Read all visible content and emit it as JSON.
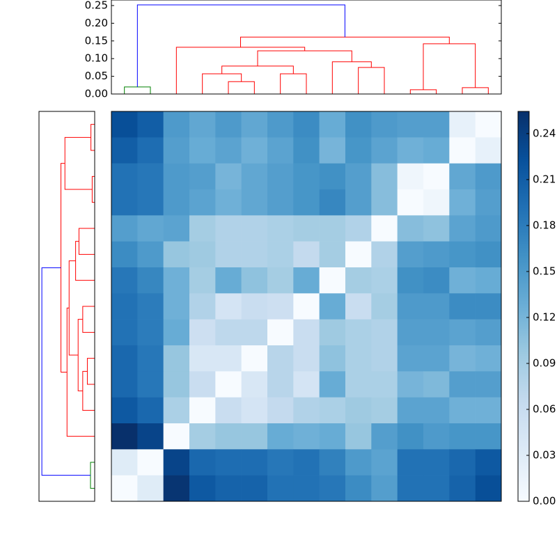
{
  "chart_data": {
    "type": "clustermap",
    "colormap": "Blues",
    "clim": [
      0,
      0.2545
    ],
    "colorbar_ticks": [
      {
        "value": 0,
        "label": "0.00"
      },
      {
        "value": 0.03,
        "label": "0.03"
      },
      {
        "value": 0.06,
        "label": "0.06"
      },
      {
        "value": 0.09,
        "label": "0.09"
      },
      {
        "value": 0.12,
        "label": "0.12"
      },
      {
        "value": 0.15,
        "label": "0.15"
      },
      {
        "value": 0.18,
        "label": "0.18"
      },
      {
        "value": 0.21,
        "label": "0.21"
      },
      {
        "value": 0.24,
        "label": "0.24"
      }
    ],
    "matrix": [
      [
        0.225,
        0.21,
        0.15,
        0.135,
        0.15,
        0.135,
        0.15,
        0.165,
        0.13,
        0.16,
        0.15,
        0.145,
        0.145,
        0.02,
        0
      ],
      [
        0.21,
        0.195,
        0.145,
        0.13,
        0.14,
        0.125,
        0.14,
        0.16,
        0.12,
        0.155,
        0.14,
        0.125,
        0.13,
        0,
        0.02
      ],
      [
        0.19,
        0.185,
        0.15,
        0.145,
        0.12,
        0.135,
        0.145,
        0.155,
        0.16,
        0.145,
        0.11,
        0.01,
        0,
        0.135,
        0.15
      ],
      [
        0.19,
        0.185,
        0.15,
        0.14,
        0.125,
        0.135,
        0.145,
        0.155,
        0.17,
        0.145,
        0.11,
        0,
        0.01,
        0.125,
        0.145
      ],
      [
        0.145,
        0.135,
        0.14,
        0.09,
        0.08,
        0.08,
        0.085,
        0.09,
        0.09,
        0.08,
        0,
        0.11,
        0.105,
        0.14,
        0.15
      ],
      [
        0.165,
        0.15,
        0.1,
        0.095,
        0.08,
        0.08,
        0.085,
        0.065,
        0.09,
        0,
        0.08,
        0.145,
        0.15,
        0.155,
        0.16
      ],
      [
        0.185,
        0.17,
        0.125,
        0.09,
        0.13,
        0.105,
        0.09,
        0.13,
        0,
        0.09,
        0.085,
        0.16,
        0.165,
        0.125,
        0.13
      ],
      [
        0.19,
        0.18,
        0.125,
        0.08,
        0.045,
        0.06,
        0.055,
        0,
        0.13,
        0.06,
        0.09,
        0.15,
        0.15,
        0.165,
        0.165
      ],
      [
        0.19,
        0.18,
        0.13,
        0.055,
        0.07,
        0.07,
        0,
        0.06,
        0.095,
        0.085,
        0.08,
        0.145,
        0.145,
        0.14,
        0.145
      ],
      [
        0.2,
        0.185,
        0.1,
        0.04,
        0.04,
        0,
        0.075,
        0.06,
        0.105,
        0.085,
        0.08,
        0.14,
        0.14,
        0.12,
        0.125
      ],
      [
        0.2,
        0.185,
        0.1,
        0.06,
        0,
        0.04,
        0.075,
        0.045,
        0.13,
        0.085,
        0.085,
        0.12,
        0.115,
        0.145,
        0.145
      ],
      [
        0.215,
        0.2,
        0.085,
        0,
        0.06,
        0.045,
        0.065,
        0.08,
        0.085,
        0.095,
        0.09,
        0.14,
        0.14,
        0.125,
        0.125
      ],
      [
        0.2545,
        0.235,
        0,
        0.09,
        0.1,
        0.1,
        0.13,
        0.125,
        0.13,
        0.1,
        0.145,
        0.16,
        0.15,
        0.155,
        0.155
      ],
      [
        0.03,
        0,
        0.235,
        0.2,
        0.195,
        0.195,
        0.185,
        0.19,
        0.175,
        0.15,
        0.14,
        0.19,
        0.19,
        0.2,
        0.215
      ],
      [
        0,
        0.03,
        0.25,
        0.215,
        0.205,
        0.205,
        0.19,
        0.19,
        0.185,
        0.165,
        0.145,
        0.19,
        0.19,
        0.205,
        0.225
      ]
    ],
    "dendrogram_ylim": [
      0,
      0.2657
    ],
    "dendrogram_yticks": [
      {
        "value": 0,
        "label": "0.00"
      },
      {
        "value": 0.05,
        "label": "0.05"
      },
      {
        "value": 0.1,
        "label": "0.10"
      },
      {
        "value": 0.15,
        "label": "0.15"
      },
      {
        "value": 0.2,
        "label": "0.20"
      },
      {
        "value": 0.25,
        "label": "0.25"
      }
    ],
    "links": [
      {
        "x": [
          0,
          0,
          1,
          1
        ],
        "h": [
          0,
          0.02,
          0.02,
          0
        ],
        "color": "#008000"
      },
      {
        "x": [
          4,
          4,
          5,
          5
        ],
        "h": [
          0,
          0.035,
          0.035,
          0
        ],
        "color": "#ff0000"
      },
      {
        "x": [
          3,
          3,
          4.5,
          4.5
        ],
        "h": [
          0,
          0.057,
          0.057,
          0.035
        ],
        "color": "#ff0000"
      },
      {
        "x": [
          6,
          6,
          7,
          7
        ],
        "h": [
          0,
          0.057,
          0.057,
          0
        ],
        "color": "#ff0000"
      },
      {
        "x": [
          3.75,
          3.75,
          6.5,
          6.5
        ],
        "h": [
          0.057,
          0.079,
          0.079,
          0.057
        ],
        "color": "#ff0000"
      },
      {
        "x": [
          9,
          9,
          10,
          10
        ],
        "h": [
          0,
          0.075,
          0.075,
          0
        ],
        "color": "#ff0000"
      },
      {
        "x": [
          8,
          8,
          9.5,
          9.5
        ],
        "h": [
          0,
          0.091,
          0.091,
          0.075
        ],
        "color": "#ff0000"
      },
      {
        "x": [
          5.125,
          5.125,
          8.75,
          8.75
        ],
        "h": [
          0.079,
          0.122,
          0.122,
          0.091
        ],
        "color": "#ff0000"
      },
      {
        "x": [
          2,
          2,
          6.9375,
          6.9375
        ],
        "h": [
          0,
          0.132,
          0.132,
          0.122
        ],
        "color": "#ff0000"
      },
      {
        "x": [
          11,
          11,
          12,
          12
        ],
        "h": [
          0,
          0.012,
          0.012,
          0
        ],
        "color": "#ff0000"
      },
      {
        "x": [
          13,
          13,
          14,
          14
        ],
        "h": [
          0,
          0.018,
          0.018,
          0
        ],
        "color": "#ff0000"
      },
      {
        "x": [
          11.5,
          11.5,
          13.5,
          13.5
        ],
        "h": [
          0.012,
          0.142,
          0.142,
          0.018
        ],
        "color": "#ff0000"
      },
      {
        "x": [
          4.46875,
          4.46875,
          12.5,
          12.5
        ],
        "h": [
          0.132,
          0.161,
          0.161,
          0.142
        ],
        "color": "#ff0000"
      },
      {
        "x": [
          0.5,
          0.5,
          8.484375,
          8.484375
        ],
        "h": [
          0.02,
          0.252,
          0.252,
          0.161
        ],
        "color": "#0000ff"
      }
    ]
  }
}
